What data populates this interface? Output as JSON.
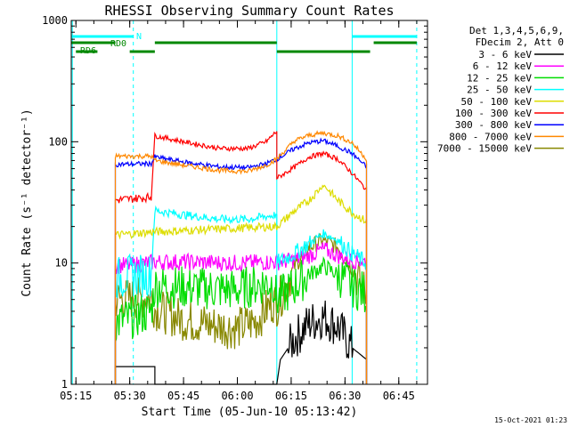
{
  "chart_data": {
    "type": "line",
    "title": "RHESSI Observing Summary Count Rates",
    "xlabel": "Start Time (05-Jun-10 05:13:42)",
    "ylabel": "Count Rate (s⁻¹ detector⁻¹)",
    "yscale": "log",
    "ylim": [
      1,
      1000
    ],
    "xlim": [
      "05:13:42",
      "06:53:00"
    ],
    "x_ticks": [
      "05:15",
      "05:30",
      "05:45",
      "06:00",
      "06:15",
      "06:30",
      "06:45"
    ],
    "y_ticks": [
      "1",
      "10",
      "100",
      "1000"
    ],
    "legend_header": [
      "Det 1,3,4,5,6,9,",
      "FDecim 2, Att 0"
    ],
    "legend_placement": "right",
    "footer_date": "15-Oct-2021 01:23",
    "state_bars": {
      "N_label": "N",
      "RD0_label": "RD0",
      "RD6_label": "RD6",
      "night_segments": [
        [
          "05:13:42",
          "05:31:00"
        ],
        [
          "06:32:00",
          "06:50:00"
        ]
      ],
      "rd0_segments": [
        [
          "05:13:42",
          "05:26:00"
        ],
        [
          "05:37:00",
          "06:11:00"
        ],
        [
          "06:38:00",
          "06:50:00"
        ]
      ],
      "rd6_segments": [
        [
          "05:15:00",
          "05:21:00"
        ],
        [
          "05:30:00",
          "05:37:00"
        ],
        [
          "06:11:00",
          "06:37:00"
        ]
      ]
    },
    "vlines": {
      "solid": [
        "05:14:00",
        "06:11:00",
        "06:32:00"
      ],
      "dashed": [
        "05:31:00",
        "06:50:00"
      ]
    },
    "data_interval": [
      "05:26:00",
      "06:36:00"
    ],
    "series": [
      {
        "name": "3 - 6 keV",
        "color": "#000000",
        "values": [
          [
            "05:26",
            1.4
          ],
          [
            "05:37",
            1.4
          ],
          [
            "05:37",
            1.0
          ],
          [
            "06:11",
            1.0
          ],
          [
            "06:12",
            1.6
          ],
          [
            "06:16",
            2.4
          ],
          [
            "06:20",
            3.2
          ],
          [
            "06:24",
            3.6
          ],
          [
            "06:28",
            3.0
          ],
          [
            "06:32",
            2.0
          ],
          [
            "06:36",
            1.6
          ]
        ]
      },
      {
        "name": "6 - 12 keV",
        "color": "#ff00ff",
        "values": [
          [
            "05:26",
            9.5
          ],
          [
            "05:30",
            9.6
          ],
          [
            "05:37",
            10.2
          ],
          [
            "05:45",
            10.2
          ],
          [
            "06:00",
            10.0
          ],
          [
            "06:11",
            10.2
          ],
          [
            "06:16",
            10.6
          ],
          [
            "06:20",
            11.5
          ],
          [
            "06:24",
            13.0
          ],
          [
            "06:28",
            11.5
          ],
          [
            "06:32",
            10.5
          ],
          [
            "06:36",
            10.3
          ]
        ]
      },
      {
        "name": "12 - 25 keV",
        "color": "#00dd00",
        "values": [
          [
            "05:26",
            3.2
          ],
          [
            "05:30",
            3.5
          ],
          [
            "05:36",
            4.0
          ],
          [
            "05:37",
            6.5
          ],
          [
            "05:45",
            6.3
          ],
          [
            "06:00",
            6.0
          ],
          [
            "06:05",
            6.6
          ],
          [
            "06:10",
            7.0
          ],
          [
            "06:11",
            5.0
          ],
          [
            "06:16",
            6.5
          ],
          [
            "06:20",
            8.0
          ],
          [
            "06:24",
            9.5
          ],
          [
            "06:28",
            8.0
          ],
          [
            "06:32",
            6.5
          ],
          [
            "06:36",
            5.5
          ]
        ]
      },
      {
        "name": "25 - 50 keV",
        "color": "#00ffff",
        "values": [
          [
            "05:26",
            7.5
          ],
          [
            "05:30",
            7.8
          ],
          [
            "05:36",
            8.0
          ],
          [
            "05:37",
            27
          ],
          [
            "05:45",
            25
          ],
          [
            "05:55",
            23
          ],
          [
            "06:03",
            23
          ],
          [
            "06:11",
            25
          ],
          [
            "06:11",
            10
          ],
          [
            "06:16",
            12
          ],
          [
            "06:20",
            14.5
          ],
          [
            "06:24",
            17.5
          ],
          [
            "06:28",
            15.5
          ],
          [
            "06:32",
            12
          ],
          [
            "06:36",
            10
          ]
        ]
      },
      {
        "name": "50 - 100 keV",
        "color": "#dddd00",
        "values": [
          [
            "05:26",
            17
          ],
          [
            "05:36",
            18
          ],
          [
            "06:11",
            20
          ],
          [
            "06:16",
            27
          ],
          [
            "06:20",
            33
          ],
          [
            "06:24",
            44
          ],
          [
            "06:28",
            33
          ],
          [
            "06:32",
            26
          ],
          [
            "06:36",
            22
          ]
        ]
      },
      {
        "name": "100 - 300 keV",
        "color": "#ff0000",
        "values": [
          [
            "05:26",
            33
          ],
          [
            "05:36",
            35
          ],
          [
            "05:37",
            112
          ],
          [
            "05:45",
            100
          ],
          [
            "05:55",
            88
          ],
          [
            "06:03",
            88
          ],
          [
            "06:08",
            100
          ],
          [
            "06:11",
            122
          ],
          [
            "06:11",
            50
          ],
          [
            "06:16",
            62
          ],
          [
            "06:20",
            75
          ],
          [
            "06:24",
            80
          ],
          [
            "06:28",
            72
          ],
          [
            "06:32",
            55
          ],
          [
            "06:36",
            40
          ]
        ]
      },
      {
        "name": "300 - 800 keV",
        "color": "#0000ff",
        "values": [
          [
            "05:26",
            65
          ],
          [
            "05:36",
            66
          ],
          [
            "05:37",
            75
          ],
          [
            "05:45",
            68
          ],
          [
            "05:55",
            62
          ],
          [
            "06:03",
            61
          ],
          [
            "06:08",
            66
          ],
          [
            "06:11",
            72
          ],
          [
            "06:16",
            88
          ],
          [
            "06:20",
            98
          ],
          [
            "06:24",
            102
          ],
          [
            "06:28",
            92
          ],
          [
            "06:32",
            80
          ],
          [
            "06:36",
            62
          ]
        ]
      },
      {
        "name": "800 - 7000 keV",
        "color": "#ff8800",
        "values": [
          [
            "05:26",
            76
          ],
          [
            "05:36",
            76
          ],
          [
            "05:37",
            70
          ],
          [
            "05:45",
            64
          ],
          [
            "05:55",
            58
          ],
          [
            "06:03",
            57
          ],
          [
            "06:08",
            64
          ],
          [
            "06:11",
            72
          ],
          [
            "06:16",
            102
          ],
          [
            "06:20",
            113
          ],
          [
            "06:24",
            118
          ],
          [
            "06:28",
            112
          ],
          [
            "06:32",
            98
          ],
          [
            "06:36",
            72
          ]
        ]
      },
      {
        "name": "7000 - 15000 keV",
        "color": "#888800",
        "values": [
          [
            "05:26",
            5.0
          ],
          [
            "05:36",
            5.2
          ],
          [
            "05:37",
            4.2
          ],
          [
            "05:45",
            3.4
          ],
          [
            "05:55",
            3.0
          ],
          [
            "06:00",
            2.9
          ],
          [
            "06:05",
            3.3
          ],
          [
            "06:10",
            4.8
          ],
          [
            "06:11",
            4.5
          ],
          [
            "06:16",
            9.5
          ],
          [
            "06:20",
            13.5
          ],
          [
            "06:24",
            15.5
          ],
          [
            "06:28",
            13.5
          ],
          [
            "06:32",
            9.0
          ],
          [
            "06:36",
            5.5
          ]
        ]
      }
    ]
  }
}
